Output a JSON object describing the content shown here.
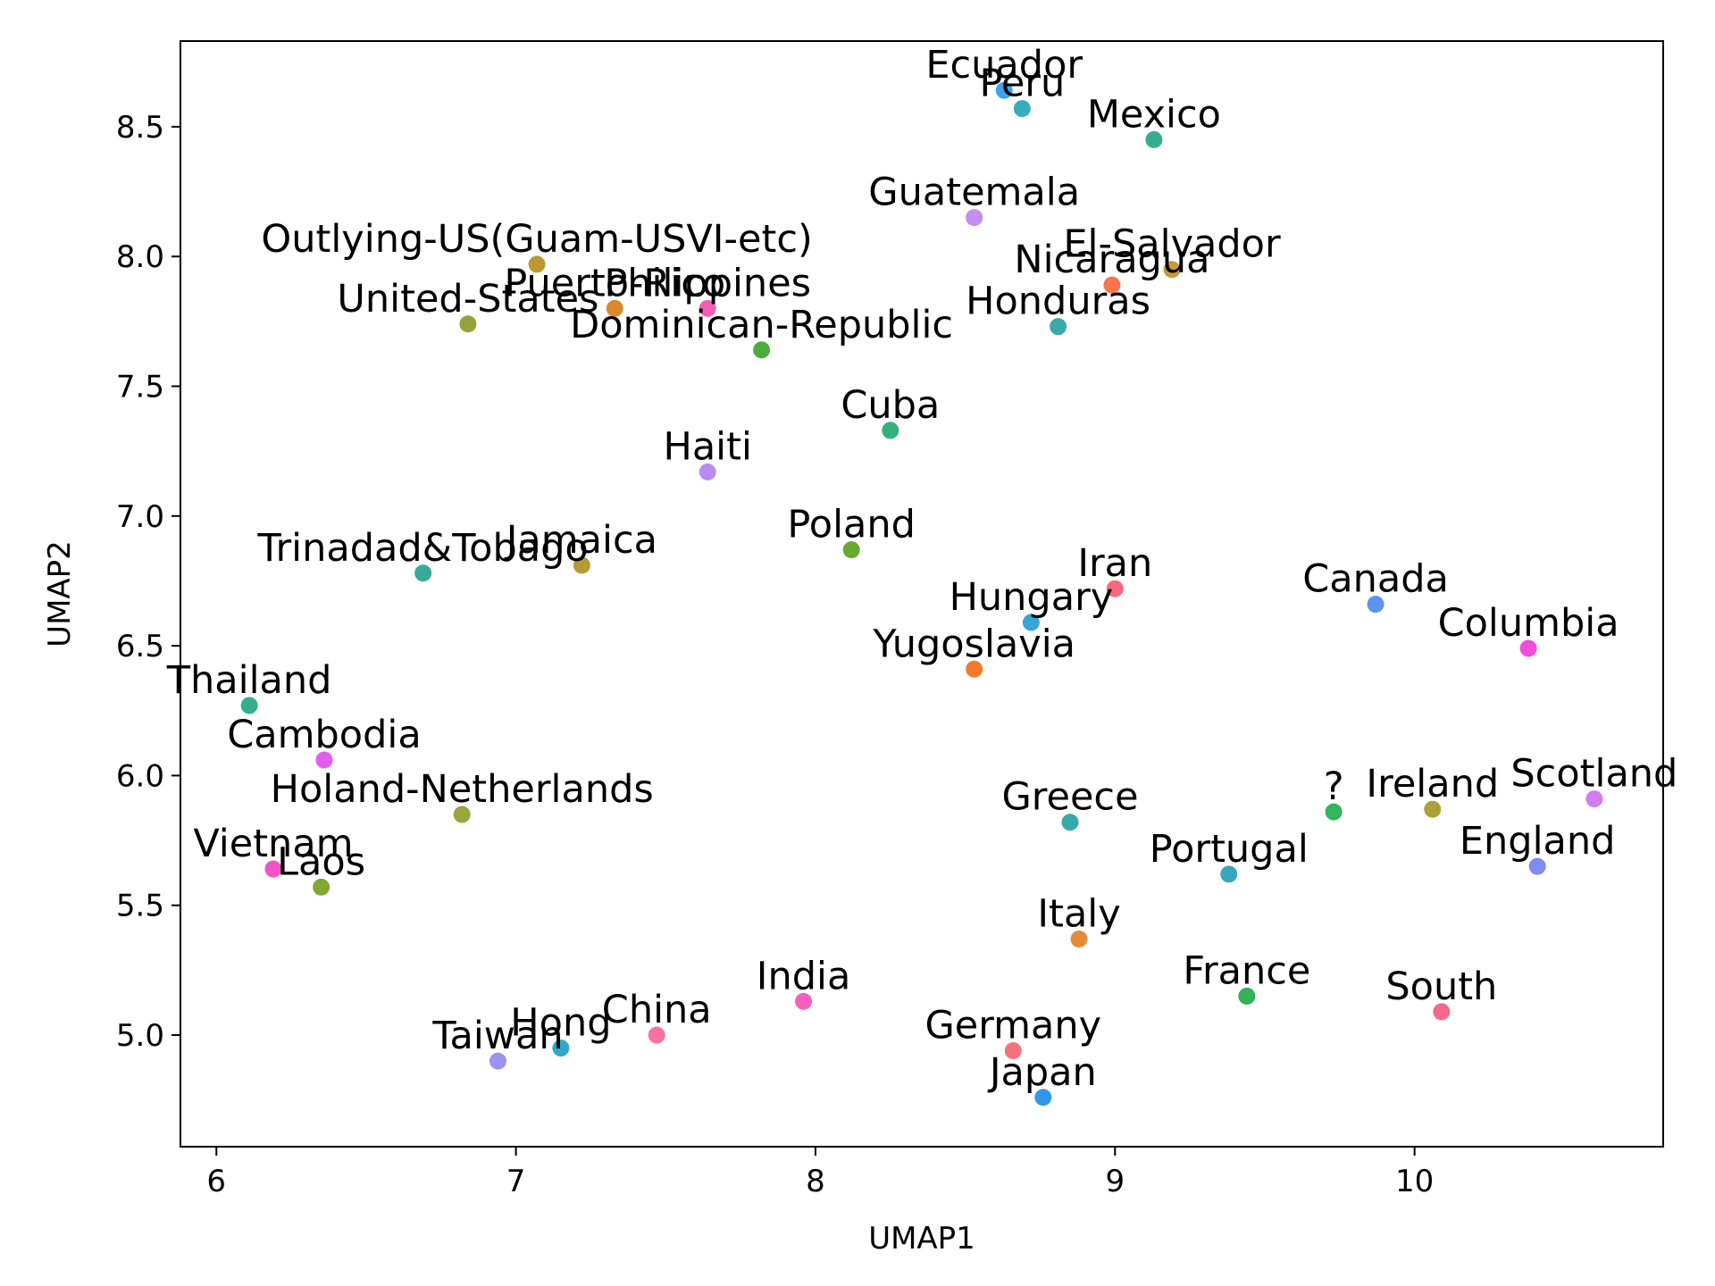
{
  "chart_data": {
    "type": "scatter",
    "title": "",
    "xlabel": "UMAP1",
    "ylabel": "UMAP2",
    "xlim": [
      5.88,
      10.83
    ],
    "ylim": [
      4.57,
      8.83
    ],
    "xticks": [
      6,
      7,
      8,
      9,
      10
    ],
    "yticks": [
      5.0,
      5.5,
      6.0,
      6.5,
      7.0,
      7.5,
      8.0,
      8.5
    ],
    "xtick_labels": [
      "6",
      "7",
      "8",
      "9",
      "10"
    ],
    "ytick_labels": [
      "5.0",
      "5.5",
      "6.0",
      "6.5",
      "7.0",
      "7.5",
      "8.0",
      "8.5"
    ],
    "grid": false,
    "points": [
      {
        "label": "Ecuador",
        "x": 8.63,
        "y": 8.64,
        "color": "#3ba3ec"
      },
      {
        "label": "Peru",
        "x": 8.69,
        "y": 8.57,
        "color": "#36adbc"
      },
      {
        "label": "Mexico",
        "x": 9.13,
        "y": 8.45,
        "color": "#34ae91"
      },
      {
        "label": "Guatemala",
        "x": 8.53,
        "y": 8.15,
        "color": "#c18ef1"
      },
      {
        "label": "Outlying-US(Guam-USVI-etc)",
        "x": 7.07,
        "y": 7.97,
        "color": "#bb9832"
      },
      {
        "label": "El-Salvador",
        "x": 9.19,
        "y": 7.95,
        "color": "#c49a3a"
      },
      {
        "label": "Nicaragua",
        "x": 8.99,
        "y": 7.89,
        "color": "#f7754f"
      },
      {
        "label": "Puerto-Rico",
        "x": 7.33,
        "y": 7.8,
        "color": "#d88a2d"
      },
      {
        "label": "Philippines",
        "x": 7.64,
        "y": 7.8,
        "color": "#f45fb5"
      },
      {
        "label": "United-States",
        "x": 6.84,
        "y": 7.74,
        "color": "#96a13a"
      },
      {
        "label": "Honduras",
        "x": 8.81,
        "y": 7.73,
        "color": "#3aa9a9"
      },
      {
        "label": "Dominican-Republic",
        "x": 7.82,
        "y": 7.64,
        "color": "#4bad39"
      },
      {
        "label": "Cuba",
        "x": 8.25,
        "y": 7.33,
        "color": "#33b07a"
      },
      {
        "label": "Haiti",
        "x": 7.64,
        "y": 7.17,
        "color": "#b88bf2"
      },
      {
        "label": "Poland",
        "x": 8.12,
        "y": 6.87,
        "color": "#6aa930"
      },
      {
        "label": "Trinadad&Tobago",
        "x": 6.69,
        "y": 6.78,
        "color": "#37ab9a"
      },
      {
        "label": "Jamaica",
        "x": 7.22,
        "y": 6.81,
        "color": "#b69a35"
      },
      {
        "label": "Iran",
        "x": 9.0,
        "y": 6.72,
        "color": "#f7697a"
      },
      {
        "label": "Canada",
        "x": 9.87,
        "y": 6.66,
        "color": "#5b93ee"
      },
      {
        "label": "Hungary",
        "x": 8.72,
        "y": 6.59,
        "color": "#35a6da"
      },
      {
        "label": "Columbia",
        "x": 10.38,
        "y": 6.49,
        "color": "#f24ed9"
      },
      {
        "label": "Yugoslavia",
        "x": 8.53,
        "y": 6.41,
        "color": "#ef7a2c"
      },
      {
        "label": "Thailand",
        "x": 6.11,
        "y": 6.27,
        "color": "#34ae8c"
      },
      {
        "label": "Cambodia",
        "x": 6.36,
        "y": 6.06,
        "color": "#e35ef0"
      },
      {
        "label": "?",
        "x": 9.73,
        "y": 5.86,
        "color": "#33b45e"
      },
      {
        "label": "Ireland",
        "x": 10.06,
        "y": 5.87,
        "color": "#aaa13a"
      },
      {
        "label": "Scotland",
        "x": 10.6,
        "y": 5.91,
        "color": "#d37cf1"
      },
      {
        "label": "Holand-Netherlands",
        "x": 6.82,
        "y": 5.85,
        "color": "#9ca43c"
      },
      {
        "label": "Greece",
        "x": 8.85,
        "y": 5.82,
        "color": "#37aaa8"
      },
      {
        "label": "Vietnam",
        "x": 6.19,
        "y": 5.64,
        "color": "#f254c7"
      },
      {
        "label": "Laos",
        "x": 6.35,
        "y": 5.57,
        "color": "#80a732"
      },
      {
        "label": "England",
        "x": 10.41,
        "y": 5.65,
        "color": "#7d8cef"
      },
      {
        "label": "Portugal",
        "x": 9.38,
        "y": 5.62,
        "color": "#37a7bd"
      },
      {
        "label": "Italy",
        "x": 8.88,
        "y": 5.37,
        "color": "#e38b37"
      },
      {
        "label": "France",
        "x": 9.44,
        "y": 5.15,
        "color": "#33b155"
      },
      {
        "label": "South",
        "x": 10.09,
        "y": 5.09,
        "color": "#f5698b"
      },
      {
        "label": "India",
        "x": 7.96,
        "y": 5.13,
        "color": "#f55fbe"
      },
      {
        "label": "China",
        "x": 7.47,
        "y": 5.0,
        "color": "#f772a2"
      },
      {
        "label": "Hong",
        "x": 7.15,
        "y": 4.95,
        "color": "#2fa8c5"
      },
      {
        "label": "Taiwan",
        "x": 6.94,
        "y": 4.9,
        "color": "#9c92f0"
      },
      {
        "label": "Germany",
        "x": 8.66,
        "y": 4.94,
        "color": "#f7727a"
      },
      {
        "label": "Japan",
        "x": 8.76,
        "y": 4.76,
        "color": "#3197e8"
      }
    ]
  }
}
